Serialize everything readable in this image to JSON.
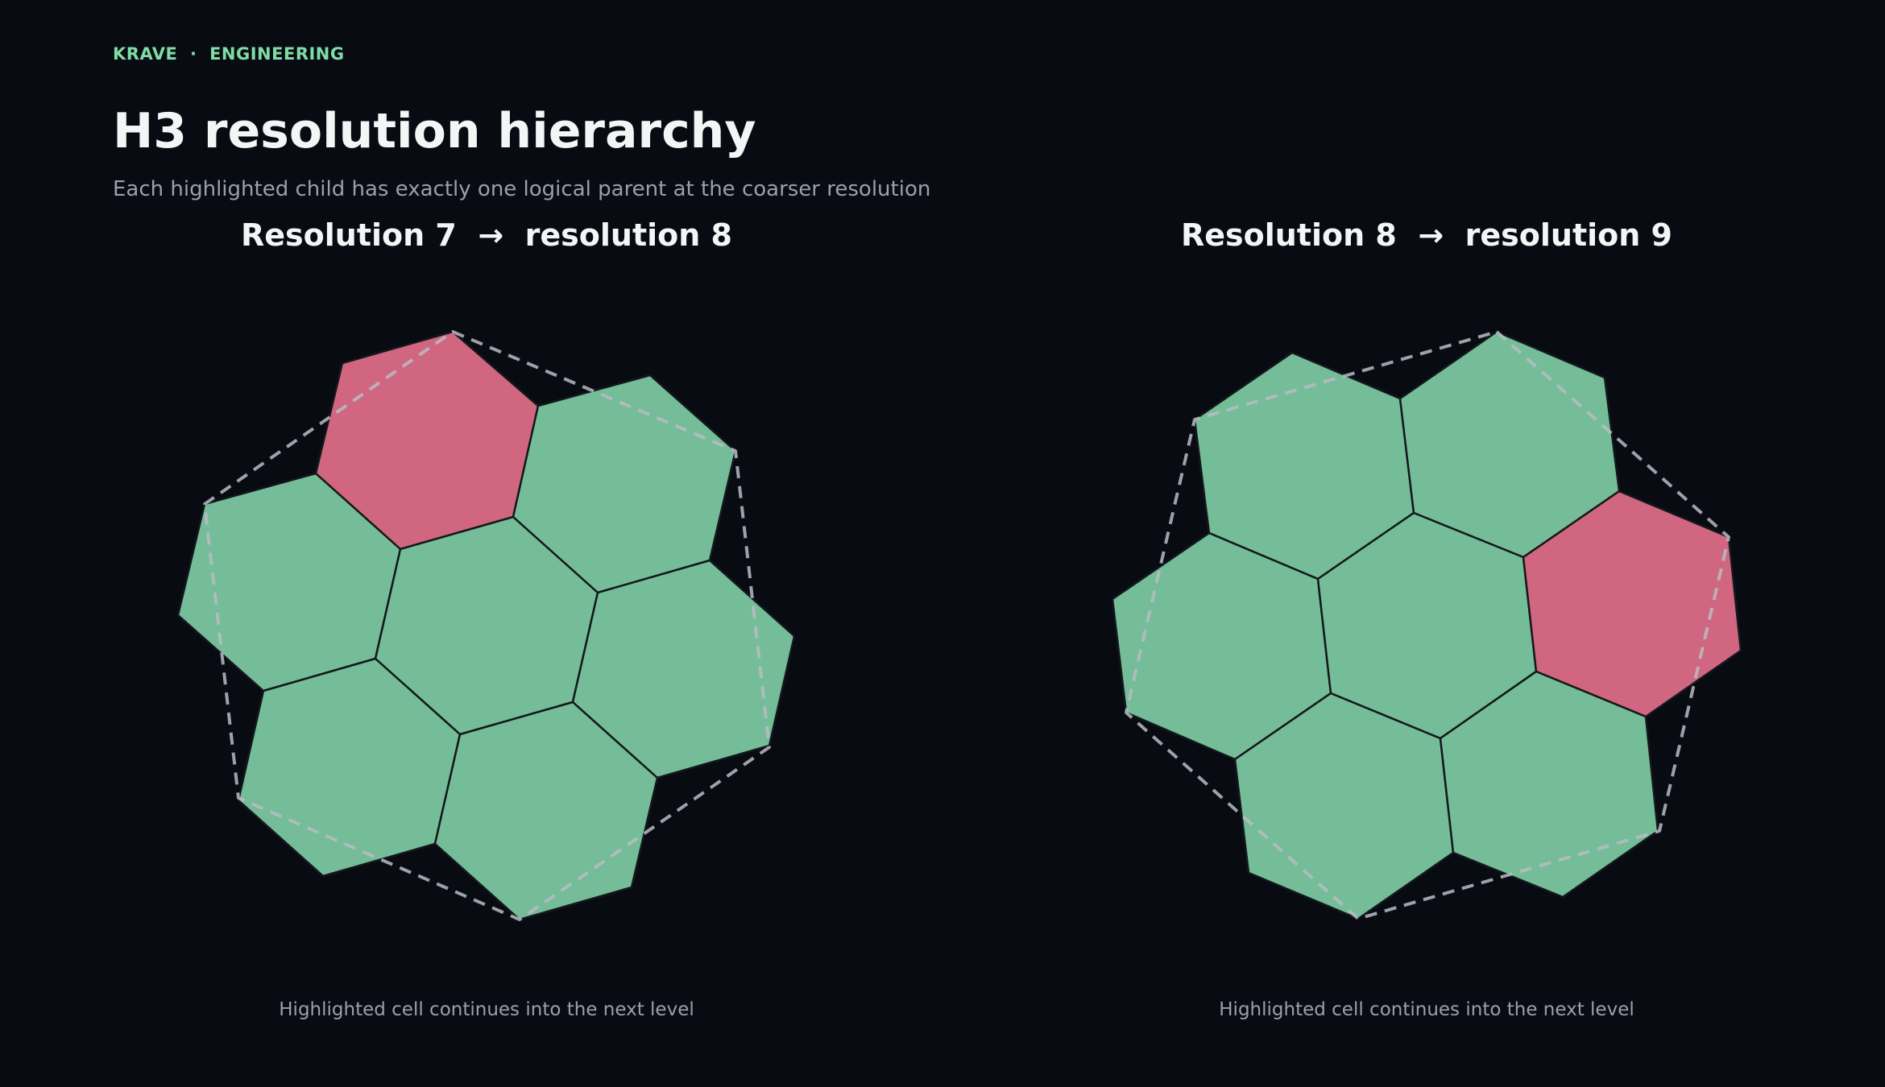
{
  "header": {
    "eyebrow": "KRAVE  ·  ENGINEERING",
    "title": "H3 resolution hierarchy",
    "subtitle": "Each highlighted child has exactly one logical parent at the coarser resolution"
  },
  "colors": {
    "background": "#080b11",
    "child_cell": "#74bd98",
    "highlighted_cell": "#d06680",
    "cell_border": "#14181c",
    "parent_outline": "#b8bcc4",
    "eyebrow": "#7fdca6"
  },
  "panels": [
    {
      "title": "Resolution 7  →  resolution 8",
      "caption": "Highlighted cell continues into the next level",
      "parent_resolution": 7,
      "child_resolution": 8,
      "child_count": 7,
      "highlighted_child": "top-left"
    },
    {
      "title": "Resolution 8  →  resolution 9",
      "caption": "Highlighted cell continues into the next level",
      "parent_resolution": 8,
      "child_resolution": 9,
      "child_count": 7,
      "highlighted_child": "right"
    }
  ]
}
